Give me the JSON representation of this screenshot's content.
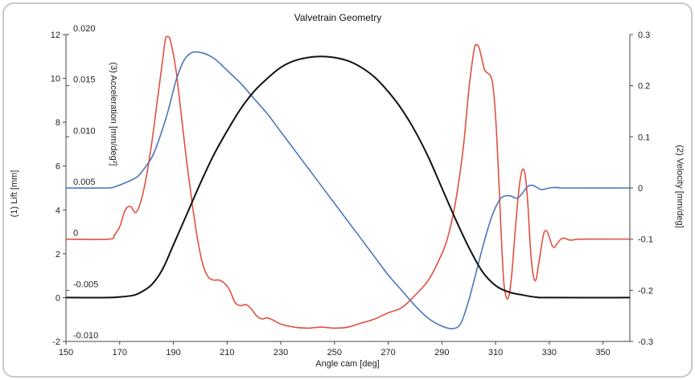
{
  "chart_data": {
    "type": "line",
    "title": "Valvetrain Geometry",
    "xlabel": "Angle cam [deg]",
    "xlim": [
      150,
      360
    ],
    "x_ticks": [
      "150",
      "170",
      "190",
      "210",
      "230",
      "250",
      "270",
      "290",
      "310",
      "330",
      "350"
    ],
    "axes": {
      "lift": {
        "label": "(1) Lift [mm]",
        "ylim": [
          -2,
          12
        ],
        "ticks": [
          "-2",
          "0",
          "2",
          "4",
          "6",
          "8",
          "10",
          "12"
        ]
      },
      "acceleration": {
        "label": "(3) Acceleration [mm/deg²]",
        "ylim": [
          -0.01,
          0.02
        ],
        "ticks": [
          "-0.010",
          "-0.005",
          "0",
          "0.005",
          "0.010",
          "0.015",
          "0.020"
        ]
      },
      "velocity": {
        "label": "(2) Velocity [mm/deg]",
        "ylim": [
          -0.3,
          0.3
        ],
        "ticks": [
          "-0.3",
          "-0.2",
          "-0.1",
          "0",
          "0.1",
          "0.2",
          "0.3"
        ]
      }
    },
    "series": [
      {
        "axis": "lift",
        "color": "#111111",
        "points": [
          [
            150,
            0
          ],
          [
            165,
            0
          ],
          [
            170,
            0.03
          ],
          [
            175,
            0.1
          ],
          [
            178,
            0.25
          ],
          [
            182,
            0.6
          ],
          [
            186,
            1.3
          ],
          [
            190,
            2.4
          ],
          [
            195,
            3.8
          ],
          [
            200,
            5.2
          ],
          [
            205,
            6.5
          ],
          [
            210,
            7.6
          ],
          [
            215,
            8.6
          ],
          [
            220,
            9.4
          ],
          [
            225,
            10.0
          ],
          [
            230,
            10.5
          ],
          [
            235,
            10.8
          ],
          [
            240,
            10.95
          ],
          [
            245,
            11.0
          ],
          [
            250,
            10.95
          ],
          [
            255,
            10.8
          ],
          [
            260,
            10.5
          ],
          [
            265,
            10.05
          ],
          [
            270,
            9.4
          ],
          [
            275,
            8.6
          ],
          [
            280,
            7.6
          ],
          [
            285,
            6.4
          ],
          [
            290,
            5.0
          ],
          [
            295,
            3.6
          ],
          [
            300,
            2.3
          ],
          [
            305,
            1.2
          ],
          [
            310,
            0.55
          ],
          [
            315,
            0.25
          ],
          [
            320,
            0.12
          ],
          [
            325,
            0.02
          ],
          [
            330,
            0
          ],
          [
            360,
            0
          ]
        ]
      },
      {
        "axis": "velocity",
        "color": "#4a76c0",
        "points": [
          [
            150,
            0
          ],
          [
            165,
            0
          ],
          [
            168,
            0.002
          ],
          [
            172,
            0.01
          ],
          [
            176,
            0.02
          ],
          [
            178,
            0.03
          ],
          [
            182,
            0.06
          ],
          [
            185,
            0.1
          ],
          [
            188,
            0.15
          ],
          [
            191,
            0.21
          ],
          [
            194,
            0.25
          ],
          [
            197,
            0.265
          ],
          [
            200,
            0.265
          ],
          [
            203,
            0.26
          ],
          [
            206,
            0.25
          ],
          [
            210,
            0.23
          ],
          [
            215,
            0.205
          ],
          [
            220,
            0.175
          ],
          [
            225,
            0.145
          ],
          [
            230,
            0.11
          ],
          [
            235,
            0.075
          ],
          [
            240,
            0.04
          ],
          [
            245,
            0.005
          ],
          [
            250,
            -0.03
          ],
          [
            255,
            -0.065
          ],
          [
            260,
            -0.1
          ],
          [
            265,
            -0.135
          ],
          [
            270,
            -0.17
          ],
          [
            275,
            -0.2
          ],
          [
            280,
            -0.23
          ],
          [
            285,
            -0.255
          ],
          [
            290,
            -0.27
          ],
          [
            294,
            -0.275
          ],
          [
            297,
            -0.265
          ],
          [
            300,
            -0.22
          ],
          [
            303,
            -0.16
          ],
          [
            306,
            -0.1
          ],
          [
            309,
            -0.05
          ],
          [
            312,
            -0.02
          ],
          [
            315,
            -0.015
          ],
          [
            318,
            -0.02
          ],
          [
            320,
            -0.01
          ],
          [
            322,
            0.003
          ],
          [
            324,
            0.005
          ],
          [
            327,
            -0.003
          ],
          [
            330,
            0
          ],
          [
            333,
            0.001
          ],
          [
            336,
            0
          ],
          [
            360,
            0
          ]
        ]
      },
      {
        "axis": "acceleration",
        "color": "#e05040",
        "points": [
          [
            150,
            0
          ],
          [
            166,
            0
          ],
          [
            168,
            0.0004
          ],
          [
            170,
            0.0012
          ],
          [
            172,
            0.0028
          ],
          [
            174,
            0.0032
          ],
          [
            176,
            0.0026
          ],
          [
            178,
            0.0038
          ],
          [
            180,
            0.0062
          ],
          [
            182,
            0.0095
          ],
          [
            184,
            0.0135
          ],
          [
            186,
            0.0175
          ],
          [
            187,
            0.0195
          ],
          [
            188,
            0.0198
          ],
          [
            189,
            0.0193
          ],
          [
            191,
            0.0165
          ],
          [
            193,
            0.012
          ],
          [
            195,
            0.0075
          ],
          [
            197,
            0.0035
          ],
          [
            199,
            0
          ],
          [
            201,
            -0.0025
          ],
          [
            203,
            -0.0037
          ],
          [
            205,
            -0.004
          ],
          [
            207,
            -0.004
          ],
          [
            209,
            -0.0043
          ],
          [
            211,
            -0.005
          ],
          [
            213,
            -0.0062
          ],
          [
            215,
            -0.0065
          ],
          [
            217,
            -0.0064
          ],
          [
            219,
            -0.0068
          ],
          [
            221,
            -0.0075
          ],
          [
            223,
            -0.0078
          ],
          [
            225,
            -0.0077
          ],
          [
            227,
            -0.0079
          ],
          [
            230,
            -0.0083
          ],
          [
            235,
            -0.0086
          ],
          [
            240,
            -0.0087
          ],
          [
            245,
            -0.0086
          ],
          [
            250,
            -0.0087
          ],
          [
            255,
            -0.0086
          ],
          [
            260,
            -0.0082
          ],
          [
            265,
            -0.0078
          ],
          [
            270,
            -0.0072
          ],
          [
            275,
            -0.0067
          ],
          [
            280,
            -0.0055
          ],
          [
            285,
            -0.004
          ],
          [
            289,
            -0.002
          ],
          [
            292,
            0
          ],
          [
            295,
            0.0035
          ],
          [
            298,
            0.009
          ],
          [
            300,
            0.0145
          ],
          [
            302,
            0.0185
          ],
          [
            303,
            0.019
          ],
          [
            304,
            0.0186
          ],
          [
            305,
            0.0175
          ],
          [
            306,
            0.0165
          ],
          [
            308,
            0.016
          ],
          [
            309,
            0.015
          ],
          [
            310,
            0.012
          ],
          [
            311,
            0.007
          ],
          [
            312,
            0.001
          ],
          [
            313,
            -0.004
          ],
          [
            314,
            -0.0057
          ],
          [
            315,
            -0.0055
          ],
          [
            316,
            -0.0035
          ],
          [
            317,
            -0.0002
          ],
          [
            318,
            0.003
          ],
          [
            319,
            0.0055
          ],
          [
            320,
            0.0068
          ],
          [
            321,
            0.0063
          ],
          [
            322,
            0.0035
          ],
          [
            323,
            -0.001
          ],
          [
            324,
            -0.0035
          ],
          [
            325,
            -0.004
          ],
          [
            326,
            -0.0025
          ],
          [
            327,
            -0.0008
          ],
          [
            328,
            0.0006
          ],
          [
            329,
            0.0008
          ],
          [
            330,
            0.0002
          ],
          [
            331,
            -0.0006
          ],
          [
            332,
            -0.0008
          ],
          [
            333,
            -0.0004
          ],
          [
            335,
            0.0001
          ],
          [
            338,
            -0.0001
          ],
          [
            342,
            0
          ],
          [
            360,
            0
          ]
        ]
      }
    ],
    "grid": false,
    "legend": "none"
  }
}
